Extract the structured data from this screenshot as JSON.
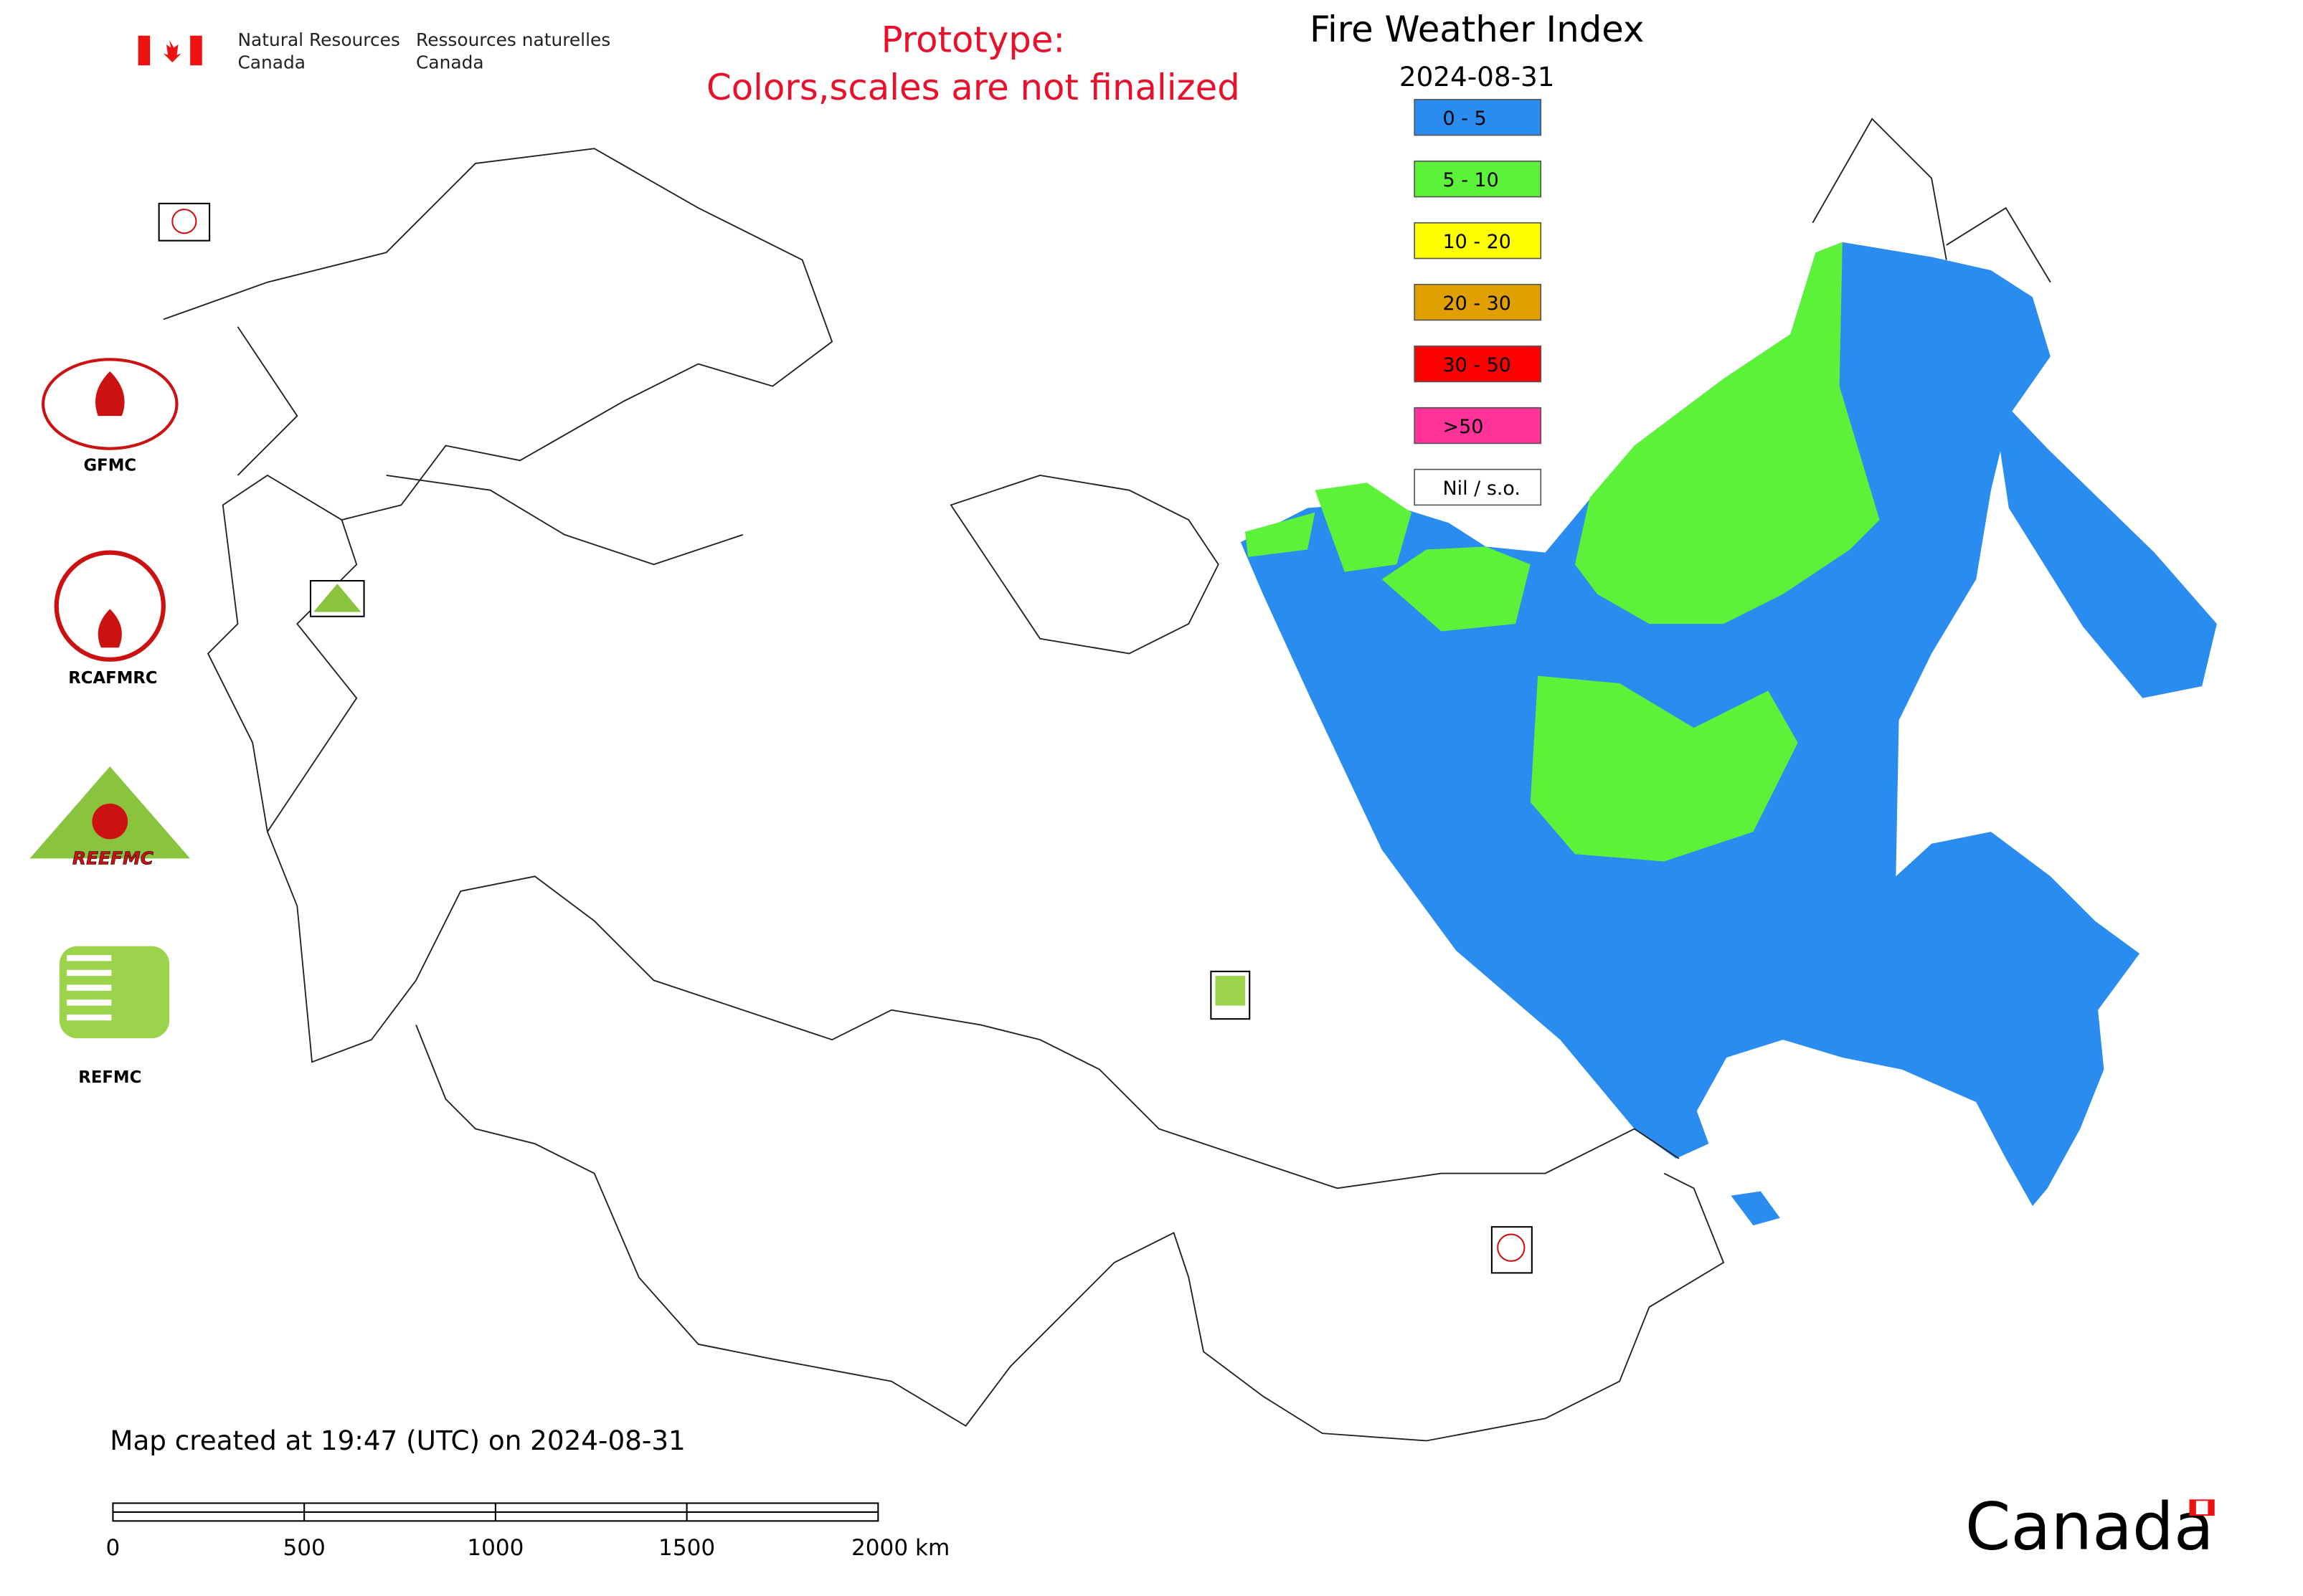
{
  "header": {
    "agency_en": [
      "Natural Resources",
      "Canada"
    ],
    "agency_fr": [
      "Ressources naturelles",
      "Canada"
    ]
  },
  "notice": [
    "Prototype:",
    "Colors,scales are not finalized"
  ],
  "title": "Fire Weather Index",
  "date": "2024-08-31",
  "legend": [
    {
      "label": "0 - 5",
      "color": "#2b8cf0"
    },
    {
      "label": "5 - 10",
      "color": "#5cf23a"
    },
    {
      "label": "10 - 20",
      "color": "#ffff00"
    },
    {
      "label": "20 - 30",
      "color": "#e0a000"
    },
    {
      "label": "30 - 50",
      "color": "#ff0000"
    },
    {
      "label": ">50",
      "color": "#ff3399"
    },
    {
      "label": "Nil / s.o.",
      "color": "#ffffff"
    }
  ],
  "logos": [
    {
      "label": "GFMC"
    },
    {
      "label": "RCAFMRC"
    },
    {
      "label": "REEFMC"
    },
    {
      "label": "REFMC"
    }
  ],
  "footer": "Map created at 19:47 (UTC) on 2024-08-31",
  "scale_bar": [
    "0",
    "500",
    "1000",
    "1500",
    "2000 km"
  ],
  "wordmark": "Canada"
}
